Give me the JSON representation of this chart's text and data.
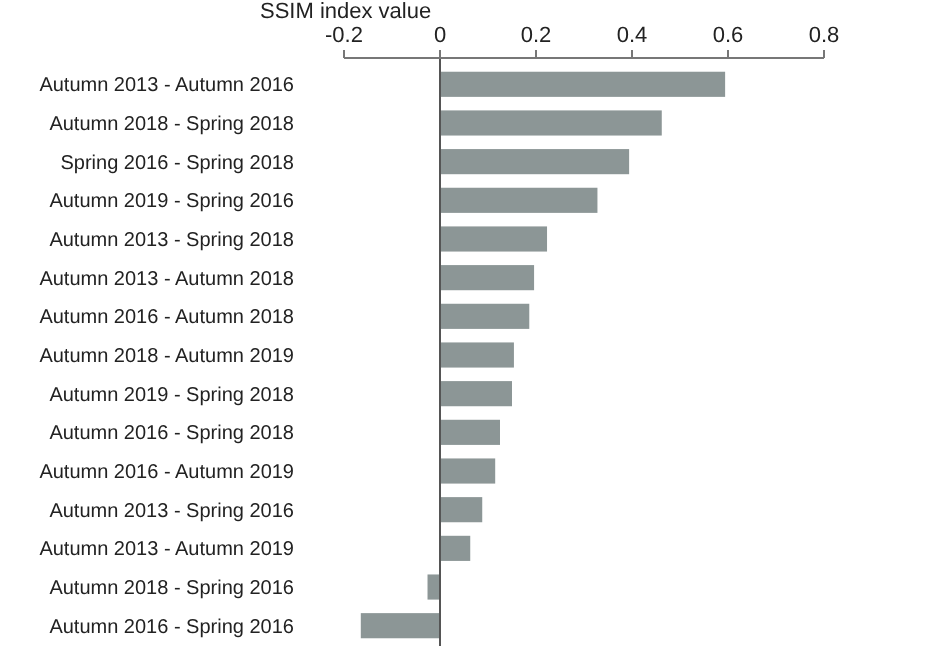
{
  "chart_data": {
    "type": "bar",
    "orientation": "horizontal",
    "xlabel": "SSIM index value",
    "categories": [
      "Autumn 2013 - Autumn 2016",
      "Autumn 2018 - Spring 2018",
      "Spring 2016 - Spring 2018",
      "Autumn 2019 - Spring 2016",
      "Autumn 2013 - Spring 2018",
      "Autumn 2013 - Autumn 2018",
      "Autumn 2016 - Autumn 2018",
      "Autumn 2018 - Autumn 2019",
      "Autumn 2019 - Spring 2018",
      "Autumn 2016 - Spring 2018",
      "Autumn 2016 - Autumn 2019",
      "Autumn 2013 - Spring 2016",
      "Autumn 2013 - Autumn 2019",
      "Autumn 2018 - Spring 2016",
      "Autumn 2016 - Spring 2016"
    ],
    "values": [
      0.594,
      0.462,
      0.394,
      0.328,
      0.223,
      0.196,
      0.186,
      0.154,
      0.15,
      0.125,
      0.115,
      0.088,
      0.063,
      -0.026,
      -0.165
    ],
    "color": "#8c9696",
    "xlim": [
      -0.2,
      0.8
    ],
    "xticks": [
      -0.2,
      0,
      0.2,
      0.4,
      0.6,
      0.8
    ]
  }
}
